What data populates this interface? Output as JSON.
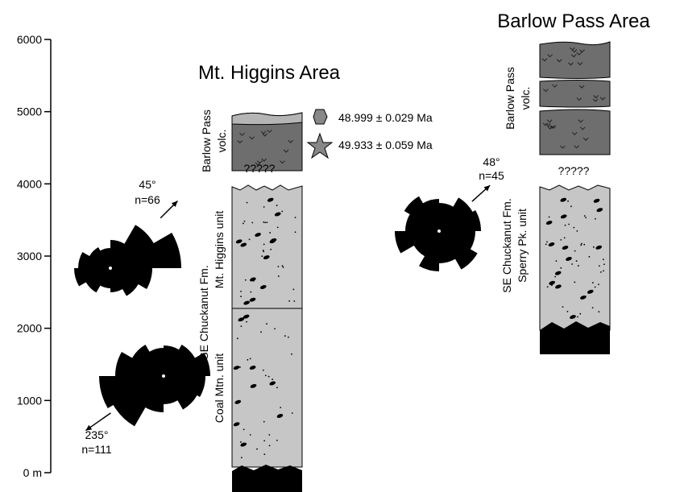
{
  "scale": {
    "ticks": [
      {
        "value": 0,
        "label": "0 m"
      },
      1000,
      2000,
      3000,
      4000,
      5000,
      6000
    ]
  },
  "mt_higgins": {
    "title": "Mt. Higgins Area",
    "volcanics_label": [
      "Barlow Pass",
      "volc."
    ],
    "ages": [
      "48.999 ± 0.029 Ma",
      "49.933 ± 0.059 Ma"
    ],
    "unconformity": "?????",
    "formation_label": "SE Chuckanut Fm.",
    "units": [
      "Mt. Higgins unit",
      "Coal Mtn. unit"
    ]
  },
  "barlow_pass": {
    "title": "Barlow Pass Area",
    "volcanics_label": [
      "Barlow Pass",
      "volc."
    ],
    "unconformity": "?????",
    "formation_label": "SE Chuckanut Fm.",
    "unit": "Sperry Pk. unit"
  },
  "roses": [
    {
      "direction": "45°",
      "n": "n=66"
    },
    {
      "direction": "235°",
      "n": "n=111"
    },
    {
      "direction": "48°",
      "n": "n=45"
    }
  ]
}
